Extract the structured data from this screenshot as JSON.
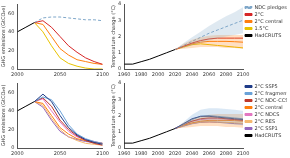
{
  "chart_data": [
    {
      "type": "line",
      "y_label": "GHG emissions (GtCO₂e)",
      "x": [
        2000,
        2010,
        2020,
        2030,
        2040,
        2050,
        2060,
        2070,
        2080,
        2090,
        2100
      ],
      "xlim": [
        2000,
        2100
      ],
      "xticks": [
        2000,
        2050,
        2100
      ],
      "ylim": [
        0,
        70
      ],
      "yticks": [
        0,
        20,
        40,
        60
      ],
      "grid": false,
      "series": [
        {
          "color": "#000000",
          "values": [
            40,
            45,
            50,
            null,
            null,
            null,
            null,
            null,
            null,
            null,
            null
          ]
        },
        {
          "name": "NDC pledges",
          "color": "#7fa7c9",
          "line_style": "dashed",
          "values": [
            null,
            null,
            50,
            55,
            56,
            56,
            55,
            54,
            53,
            53,
            52
          ]
        },
        {
          "name": "2°C",
          "color": "#d62728",
          "values": [
            null,
            null,
            50,
            52,
            45,
            35,
            25,
            18,
            12,
            8,
            5
          ]
        },
        {
          "name": "2°C central",
          "color": "#ff7f0e",
          "values": [
            null,
            null,
            50,
            48,
            35,
            22,
            15,
            10,
            8,
            6,
            5
          ]
        },
        {
          "name": "1.5°C",
          "color": "#e8c300",
          "values": [
            null,
            null,
            50,
            40,
            25,
            12,
            6,
            3,
            1,
            0,
            0
          ]
        }
      ]
    },
    {
      "type": "line",
      "y_label": "Temperature change (°C)",
      "x": [
        1960,
        1970,
        1980,
        1990,
        2000,
        2010,
        2020,
        2030,
        2040,
        2050,
        2060,
        2070,
        2080,
        2090,
        2100
      ],
      "xlim": [
        1960,
        2100
      ],
      "xticks": [
        1960,
        1980,
        2000,
        2020,
        2040,
        2060,
        2080,
        2100
      ],
      "ylim": [
        0,
        4
      ],
      "yticks": [
        0,
        1,
        2,
        3,
        4
      ],
      "grid": false,
      "legend": "right",
      "series": [
        {
          "name": "NDC pledges",
          "color": "#7fa7c9",
          "line_style": "dashed",
          "values": [
            null,
            null,
            null,
            null,
            null,
            null,
            1.2,
            1.45,
            1.7,
            1.95,
            2.2,
            2.4,
            2.6,
            2.8,
            3.0
          ],
          "lower": [
            null,
            null,
            null,
            null,
            null,
            null,
            1.2,
            1.3,
            1.45,
            1.6,
            1.75,
            1.9,
            2.0,
            2.1,
            2.2
          ],
          "upper": [
            null,
            null,
            null,
            null,
            null,
            null,
            1.2,
            1.6,
            1.95,
            2.3,
            2.65,
            2.95,
            3.25,
            3.5,
            3.8
          ]
        },
        {
          "name": "2°C",
          "color": "#d62728",
          "values": [
            null,
            null,
            null,
            null,
            null,
            null,
            1.2,
            1.4,
            1.6,
            1.75,
            1.85,
            1.9,
            1.9,
            1.9,
            1.9
          ]
        },
        {
          "name": "2°C central",
          "color": "#ff7f0e",
          "values": [
            null,
            null,
            null,
            null,
            null,
            null,
            1.2,
            1.4,
            1.55,
            1.65,
            1.7,
            1.7,
            1.7,
            1.68,
            1.65
          ],
          "lower": [
            null,
            null,
            null,
            null,
            null,
            null,
            1.2,
            1.25,
            1.3,
            1.35,
            1.35,
            1.35,
            1.3,
            1.3,
            1.25
          ],
          "upper": [
            null,
            null,
            null,
            null,
            null,
            null,
            1.2,
            1.55,
            1.8,
            1.95,
            2.05,
            2.1,
            2.1,
            2.1,
            2.1
          ]
        },
        {
          "name": "1.5°C",
          "color": "#e8c300",
          "values": [
            null,
            null,
            null,
            null,
            null,
            null,
            1.2,
            1.35,
            1.5,
            1.55,
            1.5,
            1.45,
            1.4,
            1.35,
            1.3
          ]
        },
        {
          "name": "HadCRUTS",
          "color": "#000000",
          "values": [
            0.3,
            0.3,
            0.45,
            0.6,
            0.8,
            1.0,
            1.2,
            null,
            null,
            null,
            null,
            null,
            null,
            null,
            null
          ]
        }
      ]
    },
    {
      "type": "line",
      "y_label": "GHG emissions (GtCO₂e)",
      "x": [
        2000,
        2010,
        2020,
        2030,
        2040,
        2050,
        2060,
        2070,
        2080,
        2090,
        2100
      ],
      "xlim": [
        2000,
        2100
      ],
      "xticks": [
        2000,
        2050,
        2100
      ],
      "ylim": [
        0,
        70
      ],
      "yticks": [
        0,
        20,
        40,
        60
      ],
      "grid": false,
      "series": [
        {
          "color": "#000000",
          "values": [
            40,
            45,
            50,
            null,
            null,
            null,
            null,
            null,
            null,
            null,
            null
          ]
        },
        {
          "name": "2°C SSP5",
          "color": "#1f3c88",
          "values": [
            null,
            null,
            50,
            58,
            50,
            35,
            22,
            14,
            9,
            6,
            4
          ]
        },
        {
          "name": "2°C fragmented",
          "color": "#6aa2d8",
          "values": [
            null,
            null,
            50,
            55,
            52,
            40,
            25,
            15,
            10,
            7,
            5
          ]
        },
        {
          "name": "2°C NDC-CCS",
          "color": "#c0392b",
          "values": [
            null,
            null,
            50,
            54,
            45,
            30,
            20,
            13,
            8,
            5,
            3
          ]
        },
        {
          "name": "2°C central",
          "color": "#ff7f0e",
          "values": [
            null,
            null,
            50,
            48,
            35,
            22,
            15,
            10,
            8,
            6,
            5
          ]
        },
        {
          "name": "2°C NDCS",
          "color": "#e377c2",
          "values": [
            null,
            null,
            50,
            53,
            40,
            28,
            18,
            12,
            9,
            7,
            5
          ]
        },
        {
          "name": "2°C RES",
          "color": "#f5b971",
          "values": [
            null,
            null,
            50,
            46,
            32,
            20,
            12,
            8,
            5,
            4,
            3
          ]
        },
        {
          "name": "2°C SSP1",
          "color": "#9467bd",
          "values": [
            null,
            null,
            50,
            44,
            30,
            18,
            12,
            9,
            7,
            6,
            5
          ]
        }
      ]
    },
    {
      "type": "line",
      "y_label": "Temperature change (°C)",
      "x": [
        1960,
        1970,
        1980,
        1990,
        2000,
        2010,
        2020,
        2030,
        2040,
        2050,
        2060,
        2070,
        2080,
        2090,
        2100
      ],
      "xlim": [
        1960,
        2100
      ],
      "xticks": [
        1960,
        1980,
        2000,
        2020,
        2040,
        2060,
        2080,
        2100
      ],
      "ylim": [
        0,
        4
      ],
      "yticks": [
        0,
        1,
        2,
        3,
        4
      ],
      "grid": false,
      "legend": "right",
      "series": [
        {
          "name": "2°C SSP5",
          "color": "#1f3c88",
          "values": [
            null,
            null,
            null,
            null,
            null,
            null,
            1.2,
            1.5,
            1.8,
            1.95,
            1.95,
            1.9,
            1.85,
            1.8,
            1.75
          ]
        },
        {
          "name": "2°C fragmented",
          "color": "#6aa2d8",
          "values": [
            null,
            null,
            null,
            null,
            null,
            null,
            1.2,
            1.45,
            1.75,
            1.95,
            2.0,
            1.95,
            1.9,
            1.85,
            1.8
          ],
          "lower": [
            null,
            null,
            null,
            null,
            null,
            null,
            1.2,
            1.3,
            1.45,
            1.55,
            1.6,
            1.55,
            1.5,
            1.45,
            1.4
          ],
          "upper": [
            null,
            null,
            null,
            null,
            null,
            null,
            1.2,
            1.6,
            2.05,
            2.35,
            2.45,
            2.45,
            2.4,
            2.35,
            2.3
          ]
        },
        {
          "name": "2°C NDC-CCS",
          "color": "#c0392b",
          "values": [
            null,
            null,
            null,
            null,
            null,
            null,
            1.2,
            1.45,
            1.65,
            1.8,
            1.85,
            1.85,
            1.8,
            1.75,
            1.7
          ]
        },
        {
          "name": "2°C central",
          "color": "#ff7f0e",
          "values": [
            null,
            null,
            null,
            null,
            null,
            null,
            1.2,
            1.4,
            1.55,
            1.65,
            1.7,
            1.7,
            1.7,
            1.68,
            1.65
          ],
          "lower": [
            null,
            null,
            null,
            null,
            null,
            null,
            1.2,
            1.25,
            1.3,
            1.35,
            1.35,
            1.35,
            1.3,
            1.3,
            1.25
          ],
          "upper": [
            null,
            null,
            null,
            null,
            null,
            null,
            1.2,
            1.55,
            1.8,
            1.95,
            2.05,
            2.1,
            2.1,
            2.1,
            2.1
          ]
        },
        {
          "name": "2°C NDCS",
          "color": "#e377c2",
          "values": [
            null,
            null,
            null,
            null,
            null,
            null,
            1.2,
            1.45,
            1.65,
            1.75,
            1.8,
            1.8,
            1.78,
            1.75,
            1.72
          ]
        },
        {
          "name": "2°C RES",
          "color": "#f5b971",
          "values": [
            null,
            null,
            null,
            null,
            null,
            null,
            1.2,
            1.38,
            1.52,
            1.6,
            1.62,
            1.6,
            1.58,
            1.55,
            1.52
          ]
        },
        {
          "name": "2°C SSP1",
          "color": "#9467bd",
          "values": [
            null,
            null,
            null,
            null,
            null,
            null,
            1.2,
            1.35,
            1.5,
            1.58,
            1.6,
            1.58,
            1.55,
            1.5,
            1.48
          ]
        },
        {
          "name": "HadCRUTS",
          "color": "#000000",
          "values": [
            0.3,
            0.3,
            0.45,
            0.6,
            0.8,
            1.0,
            1.2,
            null,
            null,
            null,
            null,
            null,
            null,
            null,
            null
          ]
        }
      ]
    }
  ]
}
